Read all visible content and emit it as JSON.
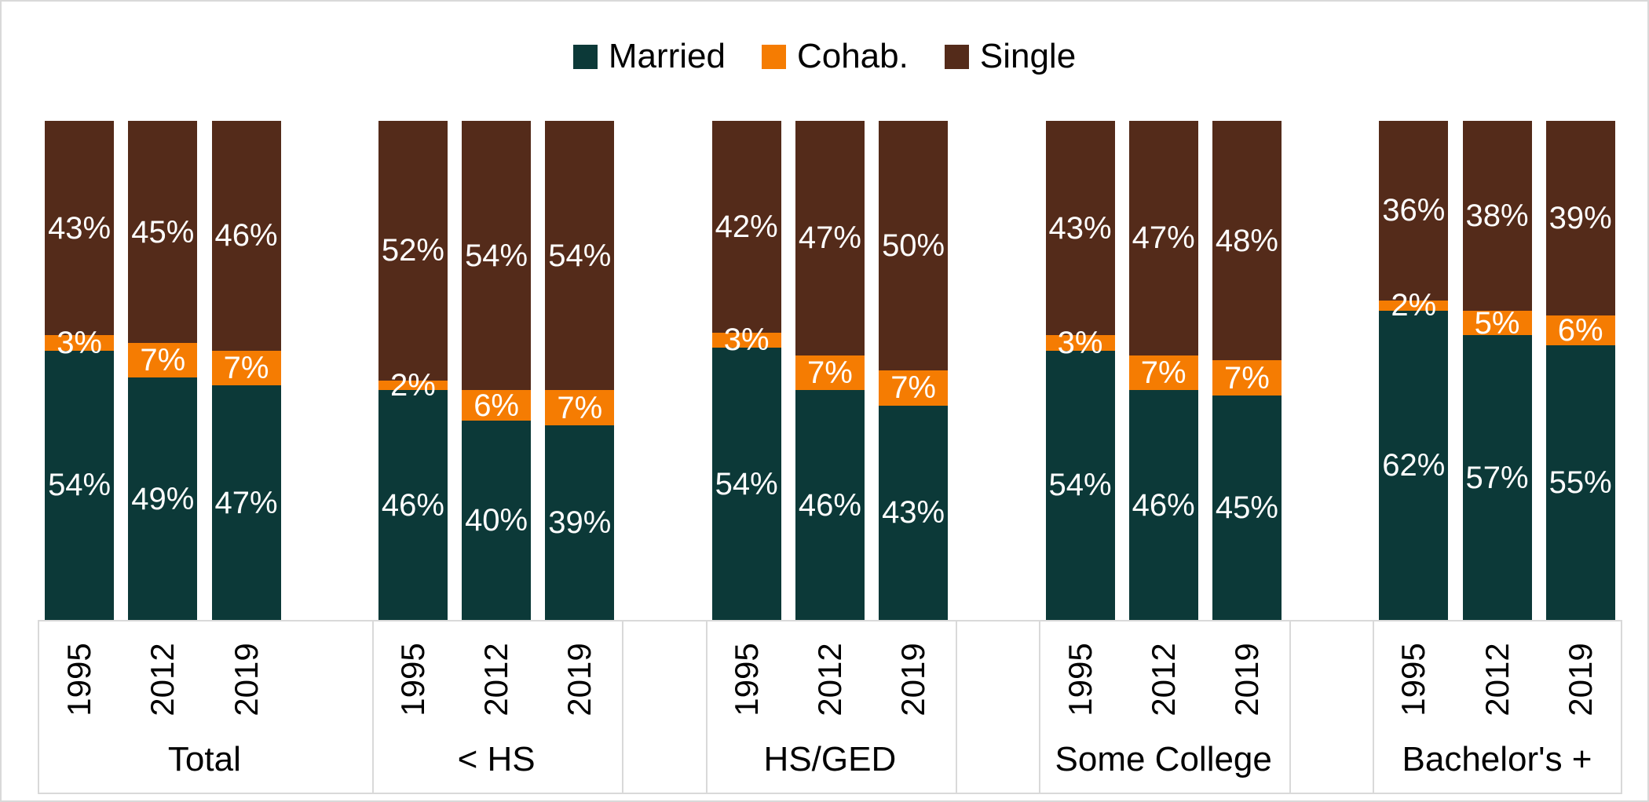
{
  "legend": {
    "items": [
      {
        "label": "Married",
        "color": "#0c3938"
      },
      {
        "label": "Cohab.",
        "color": "#f57c02"
      },
      {
        "label": "Single",
        "color": "#542b1a"
      }
    ]
  },
  "chart_data": {
    "type": "bar",
    "subtype": "100-percent-stacked-column",
    "title": "",
    "value_suffix": "%",
    "ylim": [
      0,
      100
    ],
    "grid": false,
    "legend_position": "top-center",
    "group_labels": [
      "Total",
      "< HS",
      "HS/GED",
      "Some College",
      "Bachelor's +"
    ],
    "year_labels": [
      "1995",
      "2012",
      "2019"
    ],
    "series": [
      {
        "name": "Married",
        "color": "#0c3938",
        "values": [
          [
            54,
            49,
            47
          ],
          [
            46,
            40,
            39
          ],
          [
            54,
            46,
            43
          ],
          [
            54,
            46,
            45
          ],
          [
            62,
            57,
            55
          ]
        ]
      },
      {
        "name": "Cohab.",
        "color": "#f57c02",
        "values": [
          [
            3,
            7,
            7
          ],
          [
            2,
            6,
            7
          ],
          [
            3,
            7,
            7
          ],
          [
            3,
            7,
            7
          ],
          [
            2,
            5,
            6
          ]
        ]
      },
      {
        "name": "Single",
        "color": "#542b1a",
        "values": [
          [
            43,
            45,
            46
          ],
          [
            52,
            54,
            54
          ],
          [
            42,
            47,
            50
          ],
          [
            43,
            47,
            48
          ],
          [
            36,
            38,
            39
          ]
        ]
      }
    ]
  }
}
